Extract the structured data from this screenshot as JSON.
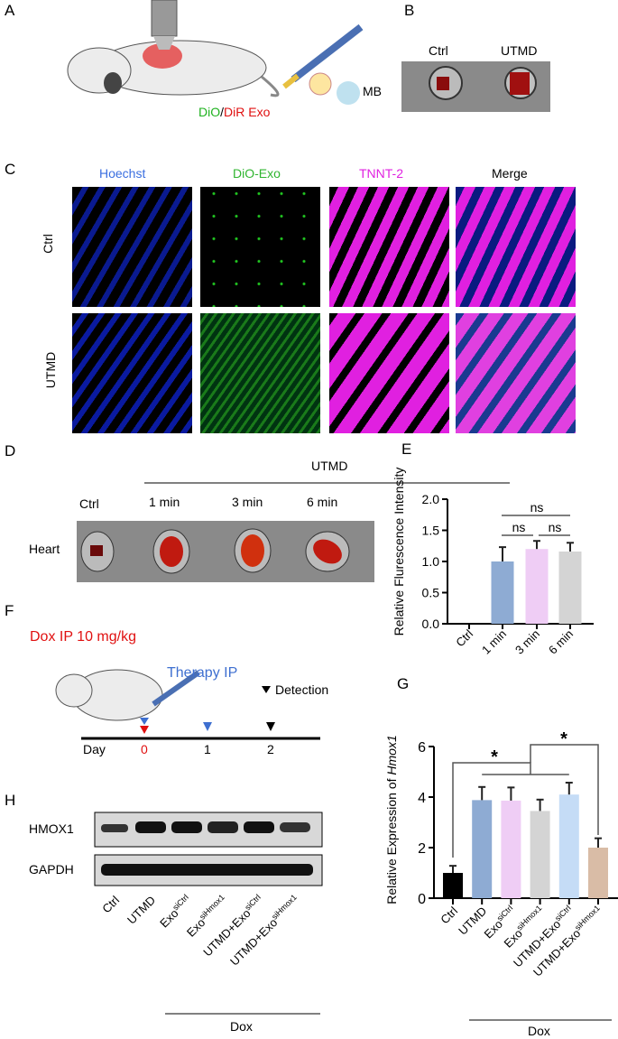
{
  "panels": {
    "A": {
      "label": "A",
      "exo_green": "DiO",
      "exo_sep": "/",
      "exo_red": "DiR Exo",
      "mb": "MB"
    },
    "B": {
      "label": "B",
      "ctrl": "Ctrl",
      "utmd": "UTMD"
    },
    "C": {
      "label": "C",
      "columns": [
        "Hoechst",
        "DiO-Exo",
        "TNNT-2",
        "Merge"
      ],
      "column_colors": [
        "#3b6fe0",
        "#2fb52f",
        "#e020e0",
        "#000000"
      ],
      "rows": [
        "Ctrl",
        "UTMD"
      ]
    },
    "D": {
      "label": "D",
      "group": "UTMD",
      "lanes": [
        "Ctrl",
        "1 min",
        "3 min",
        "6 min"
      ],
      "organ": "Heart"
    },
    "F": {
      "label": "F",
      "dox": "Dox IP 10 mg/kg",
      "therapy": "Therapy IP",
      "detection": "Detection",
      "day": "Day",
      "days": [
        "0",
        "1",
        "2"
      ]
    },
    "H": {
      "label": "H",
      "proteins": [
        "HMOX1",
        "GAPDH"
      ],
      "lanes": [
        [
          "Ctrl",
          ""
        ],
        [
          "UTMD",
          ""
        ],
        [
          "Exo",
          "siCtrl"
        ],
        [
          "Exo",
          "siHmox1"
        ],
        [
          "UTMD+Exo",
          "siCtrl"
        ],
        [
          "UTMD+Exo",
          "siHmox1"
        ]
      ],
      "group": "Dox"
    }
  },
  "chart_data": [
    {
      "panel": "E",
      "label": "E",
      "type": "bar",
      "categories": [
        "Ctrl",
        "1 min",
        "3 min",
        "6 min"
      ],
      "values": [
        0,
        1.0,
        1.2,
        1.16
      ],
      "errors": [
        0,
        0.23,
        0.13,
        0.14
      ],
      "colors": [
        "#8eabd3",
        "#8eabd3",
        "#efcdf5",
        "#d4d4d4"
      ],
      "ylabel": "Relative Flurescence Intensity",
      "ylim": [
        0,
        2.0
      ],
      "yticks": [
        "0.0",
        "0.5",
        "1.0",
        "1.5",
        "2.0"
      ],
      "annotations": [
        "ns",
        "ns",
        "ns"
      ],
      "grid": false
    },
    {
      "panel": "G",
      "label": "G",
      "type": "bar",
      "categories": [
        [
          "Ctrl",
          ""
        ],
        [
          "UTMD",
          ""
        ],
        [
          "Exo",
          "siCtrl"
        ],
        [
          "Exo",
          "siHmox1"
        ],
        [
          "UTMD+Exo",
          "siCtrl"
        ],
        [
          "UTMD+Exo",
          "siHmox1"
        ]
      ],
      "values": [
        1.0,
        3.88,
        3.86,
        3.45,
        4.1,
        2.0
      ],
      "errors": [
        0.28,
        0.52,
        0.52,
        0.45,
        0.47,
        0.37
      ],
      "colors": [
        "#000000",
        "#8eabd3",
        "#efcdf5",
        "#d4d4d4",
        "#c5dcf6",
        "#d9bca6"
      ],
      "ylabel_prefix": "Relative  Expression of ",
      "ylabel_italic": "Hmox1",
      "ylim": [
        0,
        6
      ],
      "yticks": [
        "0",
        "2",
        "4",
        "6"
      ],
      "annotations": [
        "*",
        "*"
      ],
      "group": "Dox",
      "grid": false
    }
  ]
}
